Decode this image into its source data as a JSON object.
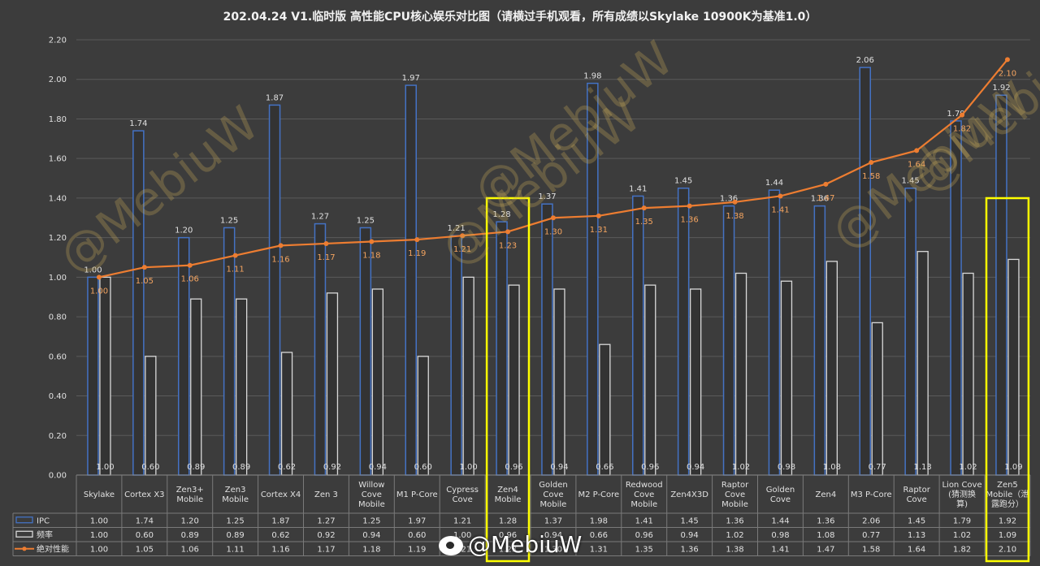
{
  "title": "202.04.24 V1.临时版 高性能CPU核心娱乐对比图（请横过手机观看，所有成绩以Skylake 10900K为基准1.0）",
  "watermarks": [
    "@MebiuW",
    "@MebiuW",
    "@MebiuW",
    "@MebiuW",
    "@MebiuW"
  ],
  "weibo_handle": "@MebiuW",
  "colors": {
    "ipc": "#4472c4",
    "freq": "#d9d9d9",
    "perf": "#ed7d31",
    "highlight": "#ffff00",
    "label_perf": "#f4a460"
  },
  "chart_data": {
    "type": "bar",
    "title": "202.04.24 V1.临时版 高性能CPU核心娱乐对比图（请横过手机观看，所有成绩以Skylake 10900K为基准1.0）",
    "ylim": [
      0,
      2.2
    ],
    "yticks": [
      "0.00",
      "0.20",
      "0.40",
      "0.60",
      "0.80",
      "1.00",
      "1.20",
      "1.40",
      "1.60",
      "1.80",
      "2.00",
      "2.20"
    ],
    "grid": true,
    "categories": [
      [
        "Skylake"
      ],
      [
        "Cortex X3"
      ],
      [
        "Zen3+",
        "Mobile"
      ],
      [
        "Zen3",
        "Mobile"
      ],
      [
        "Cortex X4"
      ],
      [
        "Zen 3"
      ],
      [
        "Willow",
        "Cove",
        "Mobile"
      ],
      [
        "M1 P-Core"
      ],
      [
        "Cypress",
        "Cove"
      ],
      [
        "Zen4",
        "Mobile"
      ],
      [
        "Golden",
        "Cove",
        "Mobile"
      ],
      [
        "M2 P-Core"
      ],
      [
        "Redwood",
        "Cove",
        "Mobile"
      ],
      [
        "Zen4X3D"
      ],
      [
        "Raptor",
        "Cove",
        "Mobile"
      ],
      [
        "Golden",
        "Cove"
      ],
      [
        "Zen4"
      ],
      [
        "M3 P-Core"
      ],
      [
        "Raptor",
        "Cove"
      ],
      [
        "Lion Cove",
        "(猜测换",
        "算)"
      ],
      [
        "Zen5",
        "Mobile（泄",
        "露跑分）"
      ]
    ],
    "series": [
      {
        "name": "IPC",
        "type": "bar",
        "values": [
          1.0,
          1.74,
          1.2,
          1.25,
          1.87,
          1.27,
          1.25,
          1.97,
          1.21,
          1.28,
          1.37,
          1.98,
          1.41,
          1.45,
          1.36,
          1.44,
          1.36,
          2.06,
          1.45,
          1.79,
          1.92
        ],
        "labels": [
          "1.00",
          "1.74",
          "1.20",
          "1.25",
          "1.87",
          "1.27",
          "1.25",
          "1.97",
          "1.21",
          "1.28",
          "1.37",
          "1.98",
          "1.41",
          "1.45",
          "1.36",
          "1.44",
          "1.36",
          "2.06",
          "1.45",
          "1.79",
          "1.92"
        ]
      },
      {
        "name": "频率",
        "type": "bar",
        "values": [
          1.0,
          0.6,
          0.89,
          0.89,
          0.62,
          0.92,
          0.94,
          0.6,
          1.0,
          0.96,
          0.94,
          0.66,
          0.96,
          0.94,
          1.02,
          0.98,
          1.08,
          0.77,
          1.13,
          1.02,
          1.09
        ],
        "labels": [
          "1.00",
          "0.60",
          "0.89",
          "0.89",
          "0.62",
          "0.92",
          "0.94",
          "0.60",
          "1.00",
          "0.96",
          "0.94",
          "0.66",
          "0.96",
          "0.94",
          "1.02",
          "0.98",
          "1.08",
          "0.77",
          "1.13",
          "1.02",
          "1.09"
        ]
      },
      {
        "name": "绝对性能",
        "type": "line",
        "values": [
          1.0,
          1.05,
          1.06,
          1.11,
          1.16,
          1.17,
          1.18,
          1.19,
          1.21,
          1.23,
          1.3,
          1.31,
          1.35,
          1.36,
          1.38,
          1.41,
          1.47,
          1.58,
          1.64,
          1.82,
          2.1
        ],
        "labels": [
          "1.00",
          "1.05",
          "1.06",
          "1.11",
          "1.16",
          "1.17",
          "1.18",
          "1.19",
          "1.21",
          "1.23",
          "1.30",
          "1.31",
          "1.35",
          "1.36",
          "1.38",
          "1.41",
          "1.47",
          "1.58",
          "1.64",
          "1.82",
          "2.10"
        ]
      }
    ],
    "highlighted_categories": [
      9,
      20
    ]
  }
}
